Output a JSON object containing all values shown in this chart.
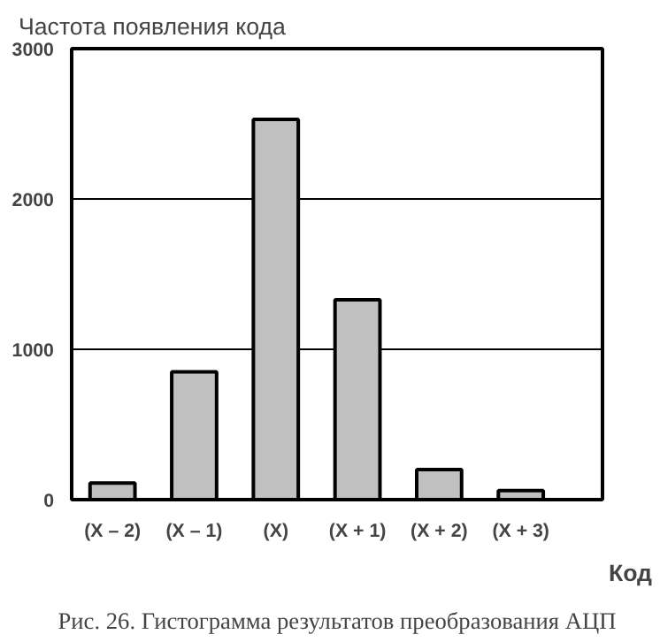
{
  "chart_data": {
    "type": "bar",
    "ylabel": "Частота появления кода",
    "xlabel": "Код",
    "categories": [
      "(X – 2)",
      "(X – 1)",
      "(X)",
      "(X + 1)",
      "(X + 2)",
      "(X + 3)"
    ],
    "values": [
      110,
      850,
      2530,
      1330,
      200,
      60
    ],
    "color": "#c0c0c0",
    "ylim": [
      0,
      3000
    ],
    "yticks": [
      0,
      1000,
      2000,
      3000
    ],
    "grid": "y",
    "annotations": [
      "Рис. 26. Гистограмма результатов преобразования АЦП"
    ]
  }
}
